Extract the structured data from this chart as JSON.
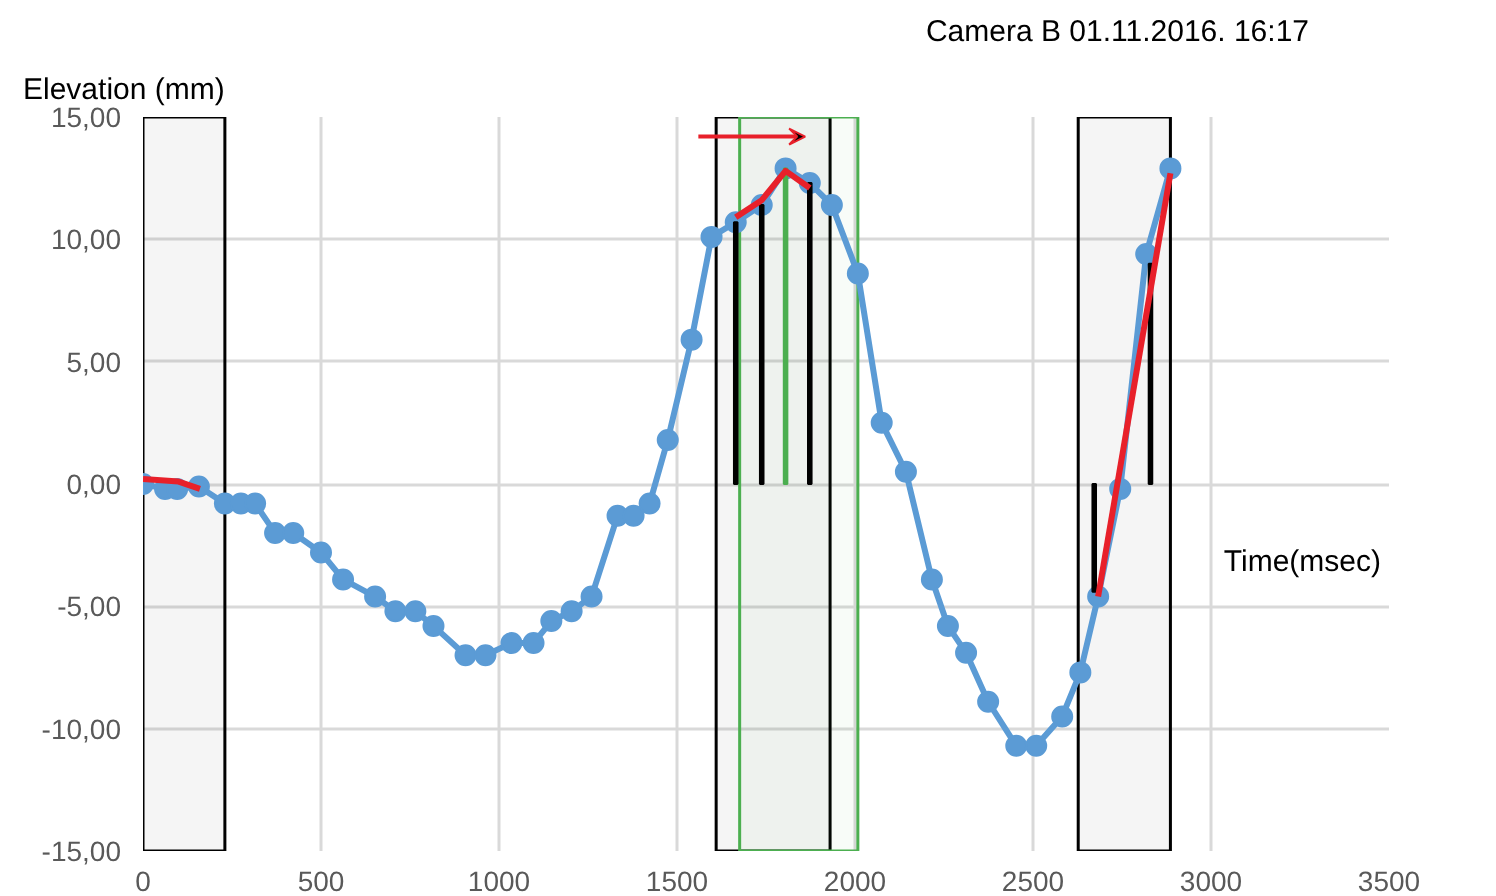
{
  "chart_data": {
    "type": "line",
    "title": "Camera B 01.11.2016. 16:17",
    "xlabel": "Time(msec)",
    "ylabel": "Elevation (mm)",
    "xlim": [
      0,
      3500
    ],
    "ylim": [
      -15,
      15
    ],
    "xticks": [
      0,
      500,
      1000,
      1500,
      2000,
      2500,
      3000,
      3500
    ],
    "yticks": [
      {
        "value": 15,
        "label": "15,00"
      },
      {
        "value": 10,
        "label": "10,00"
      },
      {
        "value": 5,
        "label": "5,00"
      },
      {
        "value": 0,
        "label": "0,00"
      },
      {
        "value": -5,
        "label": "-5,00"
      },
      {
        "value": -10,
        "label": "-10,00"
      },
      {
        "value": -15,
        "label": "-15,00"
      }
    ],
    "grid": true,
    "marker": "circle",
    "line_style": "solid",
    "series": [
      {
        "color": "#5b9bd5",
        "x": [
          0,
          62,
          96,
          157,
          230,
          275,
          315,
          371,
          422,
          500,
          562,
          652,
          709,
          765,
          816,
          906,
          962,
          1035,
          1097,
          1147,
          1204,
          1260,
          1333,
          1378,
          1423,
          1474,
          1541,
          1597,
          1665,
          1738,
          1805,
          1873,
          1935,
          2008,
          2075,
          2143,
          2216,
          2261,
          2312,
          2374,
          2453,
          2509,
          2582,
          2633,
          2683,
          2745,
          2818,
          2886
        ],
        "values": [
          0.0,
          -0.2,
          -0.2,
          -0.1,
          -0.8,
          -0.8,
          -0.8,
          -2.0,
          -2.0,
          -2.8,
          -3.9,
          -4.6,
          -5.2,
          -5.2,
          -5.8,
          -7.0,
          -7.0,
          -6.5,
          -6.5,
          -5.6,
          -5.2,
          -4.6,
          -1.3,
          -1.3,
          -0.8,
          1.8,
          5.9,
          10.1,
          10.7,
          11.4,
          12.9,
          12.3,
          11.4,
          8.6,
          2.5,
          0.5,
          -3.9,
          -5.8,
          -6.9,
          -8.9,
          -10.7,
          -10.7,
          -9.5,
          -7.7,
          -4.6,
          -0.2,
          9.4,
          12.9
        ]
      },
      {
        "type": "bar",
        "color": "#000000",
        "colors": [
          "#000000",
          "#000000",
          "#4caf50",
          "#000000",
          "#000000",
          "#000000"
        ],
        "x": [
          1665,
          1738,
          1805,
          1873,
          2672,
          2830
        ],
        "values": [
          10.7,
          11.4,
          12.9,
          12.3,
          -4.4,
          9.0
        ]
      },
      {
        "type": "line",
        "color": "#e8202a",
        "marker": "none",
        "x": [
          0,
          100,
          160
        ],
        "values": [
          0.2,
          0.1,
          -0.2
        ]
      },
      {
        "type": "line",
        "color": "#e8202a",
        "marker": "none",
        "x": [
          1665,
          1738,
          1805,
          1873
        ],
        "values": [
          10.9,
          11.6,
          12.8,
          12.1
        ]
      },
      {
        "type": "line",
        "color": "#e8202a",
        "marker": "none",
        "x": [
          2683,
          2886
        ],
        "values": [
          -4.6,
          12.7
        ]
      }
    ],
    "bands": [
      {
        "axis": "x",
        "from": 0,
        "to": 230,
        "color": "#000000"
      },
      {
        "axis": "x",
        "from": 1610,
        "to": 1930,
        "color": "#000000"
      },
      {
        "axis": "x",
        "from": 1676,
        "to": 2008,
        "color": "#4caf50"
      },
      {
        "axis": "x",
        "from": 2627,
        "to": 2886,
        "color": "#000000"
      }
    ]
  }
}
